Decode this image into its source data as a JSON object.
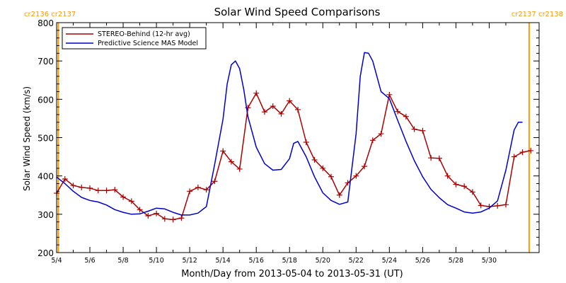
{
  "chart_data": {
    "type": "line",
    "title": "Solar Wind Speed Comparisons",
    "xlabel": "Month/Day from 2013-05-04 to 2013-05-31 (UT)",
    "ylabel": "Solar Wind Speed (km/s)",
    "x_unit": "days",
    "xlim": [
      0,
      29
    ],
    "ylim": [
      200,
      800
    ],
    "x_ticks": [
      {
        "x": 0,
        "label": "5/4"
      },
      {
        "x": 2,
        "label": "5/6"
      },
      {
        "x": 4,
        "label": "5/8"
      },
      {
        "x": 6,
        "label": "5/10"
      },
      {
        "x": 8,
        "label": "5/12"
      },
      {
        "x": 10,
        "label": "5/14"
      },
      {
        "x": 12,
        "label": "5/16"
      },
      {
        "x": 14,
        "label": "5/18"
      },
      {
        "x": 16,
        "label": "5/20"
      },
      {
        "x": 18,
        "label": "5/22"
      },
      {
        "x": 20,
        "label": "5/24"
      },
      {
        "x": 22,
        "label": "5/26"
      },
      {
        "x": 24,
        "label": "5/28"
      },
      {
        "x": 26,
        "label": "5/30"
      }
    ],
    "y_ticks": [
      200,
      300,
      400,
      500,
      600,
      700,
      800
    ],
    "legend_position": "top-left",
    "rotation_markers": [
      {
        "x": 0.1,
        "label": "cr2136 cr2137",
        "color": "#ff9900",
        "label_side": "left"
      },
      {
        "x": 28.4,
        "label": "cr2137 cr2138",
        "color": "#ff9900",
        "label_side": "right"
      }
    ],
    "series": [
      {
        "name": "STEREO-Behind (12-hr avg)",
        "color": "#aa0000",
        "markers": true,
        "x": [
          0,
          0.5,
          1,
          1.5,
          2,
          2.5,
          3,
          3.5,
          4,
          4.5,
          5,
          5.5,
          6,
          6.5,
          7,
          7.5,
          8,
          8.5,
          9,
          9.5,
          10,
          10.5,
          11,
          11.5,
          12,
          12.5,
          13,
          13.5,
          14,
          14.5,
          15,
          15.5,
          16,
          16.5,
          17,
          17.5,
          18,
          18.5,
          19,
          19.5,
          20,
          20.5,
          21,
          21.5,
          22,
          22.5,
          23,
          23.5,
          24,
          24.5,
          25,
          25.5,
          26,
          26.5,
          27,
          27.5,
          28,
          28.5
        ],
        "values": [
          355,
          392,
          375,
          370,
          368,
          362,
          362,
          364,
          345,
          334,
          312,
          296,
          302,
          288,
          286,
          290,
          360,
          370,
          364,
          386,
          465,
          437,
          418,
          578,
          616,
          567,
          582,
          562,
          596,
          573,
          488,
          442,
          420,
          398,
          350,
          382,
          400,
          425,
          493,
          510,
          612,
          568,
          555,
          522,
          518,
          447,
          446,
          400,
          378,
          373,
          358,
          323,
          320,
          322,
          325,
          450,
          462,
          466
        ]
      },
      {
        "name": "Predictive Science MAS Model",
        "color": "#0000cc",
        "markers": false,
        "x": [
          0,
          0.5,
          1,
          1.5,
          2,
          2.5,
          3,
          3.5,
          4,
          4.5,
          5,
          5.5,
          6,
          6.5,
          7,
          7.5,
          8,
          8.5,
          9,
          9.5,
          10,
          10.25,
          10.5,
          10.75,
          11,
          11.25,
          11.5,
          12,
          12.5,
          13,
          13.5,
          14,
          14.25,
          14.5,
          15,
          15.5,
          16,
          16.5,
          17,
          17.5,
          18,
          18.25,
          18.5,
          18.75,
          19,
          19.5,
          20,
          20.5,
          21,
          21.5,
          22,
          22.5,
          23,
          23.5,
          24,
          24.5,
          25,
          25.5,
          26,
          26.5,
          27,
          27.5,
          27.75,
          28
        ],
        "values": [
          397,
          380,
          360,
          344,
          336,
          332,
          324,
          312,
          305,
          300,
          301,
          308,
          316,
          314,
          305,
          298,
          298,
          303,
          320,
          430,
          548,
          640,
          690,
          700,
          680,
          625,
          555,
          475,
          432,
          415,
          417,
          445,
          485,
          490,
          450,
          398,
          356,
          336,
          326,
          332,
          510,
          660,
          722,
          720,
          700,
          620,
          602,
          545,
          490,
          440,
          398,
          365,
          343,
          325,
          316,
          306,
          303,
          306,
          316,
          335,
          415,
          520,
          540,
          540
        ]
      }
    ]
  }
}
